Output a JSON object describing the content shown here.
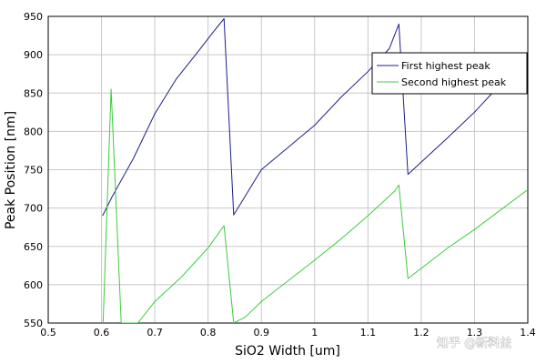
{
  "chart_data": {
    "type": "line",
    "xlabel": "SiO2 Width [um]",
    "ylabel": "Peak Position [nm]",
    "xlim": [
      0.5,
      1.4
    ],
    "ylim": [
      550,
      950
    ],
    "xticks": [
      "0.5",
      "0.6",
      "0.7",
      "0.8",
      "0.9",
      "1",
      "1.1",
      "1.2",
      "1.3",
      "1.4"
    ],
    "yticks": [
      "550",
      "600",
      "650",
      "700",
      "750",
      "800",
      "850",
      "900",
      "950"
    ],
    "grid": true,
    "legend_position": "top-right",
    "series": [
      {
        "name": "First highest peak",
        "color": "#1c1c8c",
        "points": [
          [
            0.602,
            690
          ],
          [
            0.62,
            715
          ],
          [
            0.66,
            765
          ],
          [
            0.7,
            823
          ],
          [
            0.74,
            868
          ],
          [
            0.78,
            903
          ],
          [
            0.81,
            930
          ],
          [
            0.83,
            947
          ],
          [
            0.848,
            691
          ],
          [
            0.9,
            750
          ],
          [
            1.0,
            808
          ],
          [
            1.05,
            845
          ],
          [
            1.1,
            878
          ],
          [
            1.14,
            908
          ],
          [
            1.158,
            940
          ],
          [
            1.175,
            744
          ],
          [
            1.25,
            792
          ],
          [
            1.3,
            825
          ],
          [
            1.34,
            855
          ],
          [
            1.37,
            875
          ]
        ]
      },
      {
        "name": "Second highest peak",
        "color": "#3ccc3c",
        "points": [
          [
            0.603,
            550
          ],
          [
            0.618,
            855
          ],
          [
            0.637,
            550
          ],
          [
            0.668,
            550
          ],
          [
            0.7,
            578
          ],
          [
            0.75,
            610
          ],
          [
            0.8,
            648
          ],
          [
            0.83,
            677
          ],
          [
            0.848,
            550
          ],
          [
            0.87,
            558
          ],
          [
            0.9,
            578
          ],
          [
            1.0,
            632
          ],
          [
            1.05,
            660
          ],
          [
            1.1,
            690
          ],
          [
            1.15,
            722
          ],
          [
            1.158,
            730
          ],
          [
            1.175,
            608
          ],
          [
            1.25,
            648
          ],
          [
            1.3,
            672
          ],
          [
            1.35,
            698
          ],
          [
            1.4,
            724
          ]
        ]
      }
    ]
  },
  "watermark": "知乎 @新料益"
}
